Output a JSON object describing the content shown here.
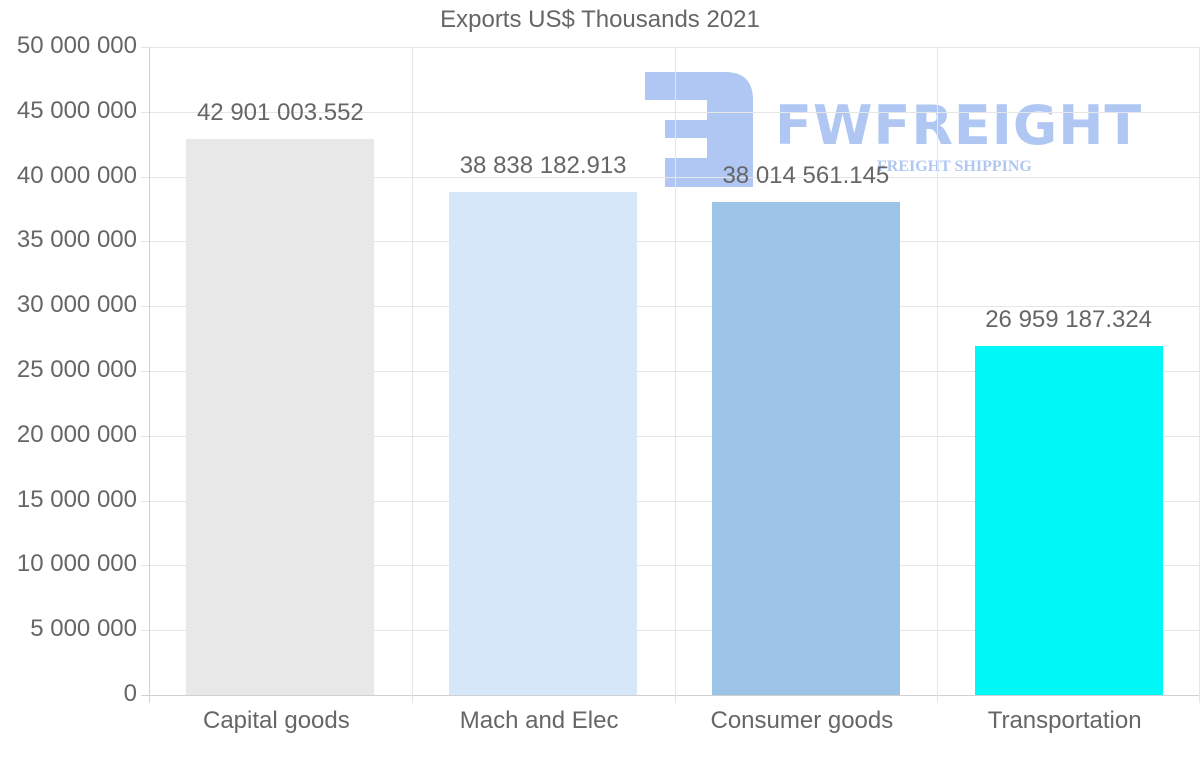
{
  "chart_data": {
    "type": "bar",
    "title": "Exports US$ Thousands 2021",
    "xlabel": "",
    "ylabel": "",
    "categories": [
      "Capital goods",
      "Mach and Elec",
      "Consumer goods",
      "Transportation"
    ],
    "values": [
      42901003.552,
      38838182.913,
      38014561.145,
      26959187.324
    ],
    "value_labels": [
      "42 901 003.552",
      "38 838 182.913",
      "38 014 561.145",
      "26 959 187.324"
    ],
    "colors": [
      "#e8e8e8",
      "#d6e7f9",
      "#9cc4e7",
      "#00f8f8"
    ],
    "ylim": [
      0,
      50000000
    ],
    "yticks": [
      0,
      5000000,
      10000000,
      15000000,
      20000000,
      25000000,
      30000000,
      35000000,
      40000000,
      45000000,
      50000000
    ],
    "ytick_labels": [
      "0",
      "5 000 000",
      "10 000 000",
      "15 000 000",
      "20 000 000",
      "25 000 000",
      "30 000 000",
      "35 000 000",
      "40 000 000",
      "45 000 000",
      "50 000 000"
    ],
    "grid": true,
    "legend": null
  },
  "watermark": {
    "brand": "FWFREIGHT",
    "tagline": "FREIGHT SHIPPING",
    "color": "#6f9ae8"
  }
}
